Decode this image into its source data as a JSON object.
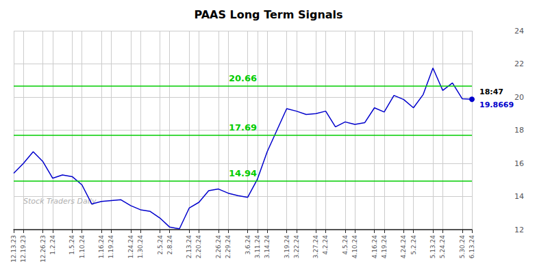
{
  "chart_data": {
    "type": "line",
    "title": "PAAS Long Term Signals",
    "categories": [
      "12.13.23",
      "12.19.23",
      null,
      "12.26.23",
      "1.2.24",
      null,
      "1.5.24",
      "1.10.24",
      null,
      "1.16.24",
      "1.19.24",
      null,
      "1.24.24",
      "1.30.24",
      null,
      "2.5.24",
      "2.8.24",
      null,
      "2.13.24",
      "2.20.24",
      null,
      "2.26.24",
      "2.29.24",
      null,
      "3.6.24",
      "3.11.24",
      "3.14.24",
      null,
      "3.19.24",
      "3.22.24",
      null,
      "3.27.24",
      "4.2.24",
      null,
      "4.5.24",
      "4.10.24",
      null,
      "4.16.24",
      "4.19.24",
      null,
      "4.24.24",
      "5.2.24",
      null,
      "5.13.24",
      "5.24.24",
      null,
      "5.30.24",
      "6.13.24"
    ],
    "values": [
      15.4,
      16.0,
      16.7,
      16.1,
      15.1,
      15.3,
      15.2,
      14.7,
      13.55,
      13.7,
      13.75,
      13.8,
      13.45,
      13.2,
      13.1,
      12.7,
      12.15,
      12.05,
      13.3,
      13.65,
      14.35,
      14.45,
      14.2,
      14.05,
      13.95,
      15.05,
      16.7,
      18.0,
      19.3,
      19.15,
      18.95,
      19.0,
      19.15,
      18.2,
      18.5,
      18.35,
      18.45,
      19.35,
      19.1,
      20.1,
      19.85,
      19.35,
      20.15,
      21.75,
      20.4,
      20.85,
      19.9,
      19.8669
    ],
    "color": "#0000cc",
    "ylim": [
      12,
      24
    ],
    "yticks": [
      12,
      14,
      16,
      18,
      20,
      22,
      24
    ],
    "grid": true,
    "annotations": [
      {
        "type": "hline",
        "y": 20.66,
        "text": "20.66",
        "color": "#00cc00"
      },
      {
        "type": "hline",
        "y": 17.69,
        "text": "17.69",
        "color": "#00cc00"
      },
      {
        "type": "hline",
        "y": 14.94,
        "text": "14.94",
        "color": "#00cc00"
      },
      {
        "type": "last_point",
        "text": "18:47",
        "color": "#000000"
      },
      {
        "type": "last_point",
        "text": "19.8669",
        "color": "#0000cc"
      },
      {
        "type": "watermark",
        "text": "Stock Traders Daily",
        "color": "#b0b0b0"
      }
    ]
  }
}
